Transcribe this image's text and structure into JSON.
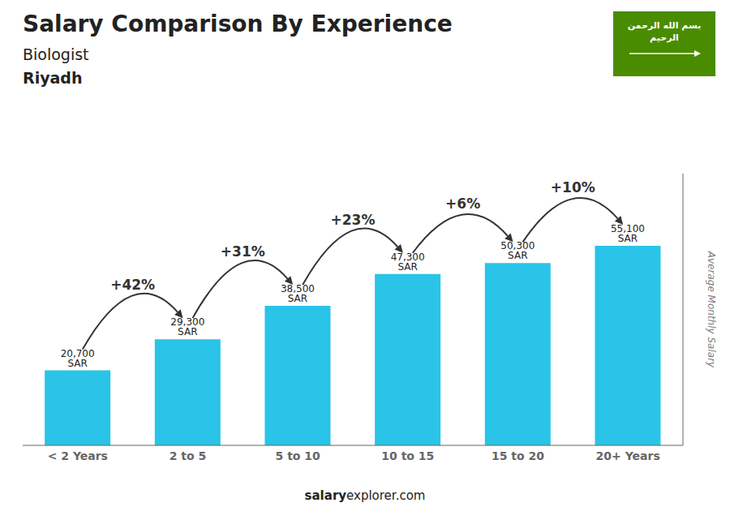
{
  "chart_data": {
    "type": "bar",
    "title": "Salary Comparison By Experience",
    "subtitle": "Biologist",
    "subtitle2": "Riyadh",
    "ylabel": "Average Monthly Salary",
    "footer": [
      "salary",
      "explorer.com"
    ],
    "categories": [
      "< 2 Years",
      "2 to 5",
      "5 to 10",
      "10 to 15",
      "15 to 20",
      "20+ Years"
    ],
    "values": [
      20700,
      29300,
      38500,
      47300,
      50300,
      55100
    ],
    "value_labels": [
      "20,700 SAR",
      "29,300 SAR",
      "38,500 SAR",
      "47,300 SAR",
      "50,300 SAR",
      "55,100 SAR"
    ],
    "data_labels": true,
    "color": "#29C4E8",
    "ylim": [
      0,
      75000
    ],
    "tick_labels": "x",
    "grid": false,
    "annotations": [
      {
        "text": "+42%",
        "from": "< 2 Years",
        "to": "2 to 5"
      },
      {
        "text": "+31%",
        "from": "2 to 5",
        "to": "5 to 10"
      },
      {
        "text": "+23%",
        "from": "5 to 10",
        "to": "10 to 15"
      },
      {
        "text": "+6%",
        "from": "10 to 15",
        "to": "15 to 20"
      },
      {
        "text": "+10%",
        "from": "15 to 20",
        "to": "20+ Years"
      }
    ],
    "badge": {
      "text": [
        "بسم الله الرحمن",
        "الرحيم"
      ],
      "color": "#4A8C00"
    }
  }
}
